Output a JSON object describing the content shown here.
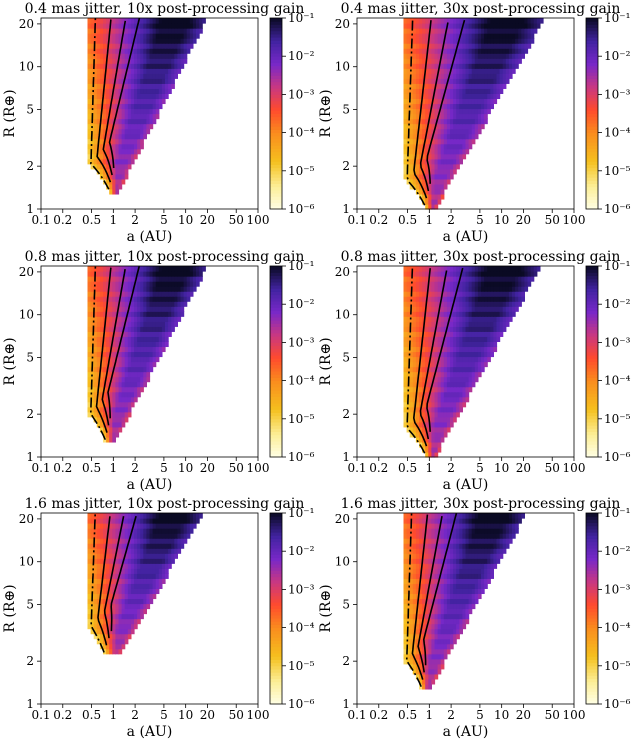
{
  "chart_data": [
    {
      "type": "heatmap",
      "title": "0.4 mas jitter, 10x post-processing gain",
      "xlabel": "a (AU)",
      "ylabel": "R (R⊕)",
      "x_scale": "log",
      "y_scale": "log",
      "xlim": [
        0.1,
        100
      ],
      "ylim": [
        1,
        22
      ],
      "x_ticks": [
        "0.1",
        "0.2",
        "0.5",
        "1",
        "2",
        "5",
        "10",
        "20",
        "50",
        "100"
      ],
      "y_ticks": [
        "1",
        "2",
        "5",
        "10",
        "20"
      ],
      "colorbar": {
        "scale": "log",
        "range": [
          1e-06,
          0.1
        ],
        "ticks": [
          "10⁻⁶",
          "10⁻⁵",
          "10⁻⁴",
          "10⁻³",
          "10⁻²",
          "10⁻¹"
        ]
      },
      "region": {
        "inner_edge_a": 0.45,
        "min_R": 1.3,
        "min_R_at_a": 0.9,
        "outer_edge": [
          [
            0.9,
            1
          ],
          [
            20,
            22
          ]
        ]
      },
      "contours": 4
    },
    {
      "type": "heatmap",
      "title": "0.4 mas jitter, 30x post-processing gain",
      "xlabel": "a (AU)",
      "ylabel": "R (R⊕)",
      "x_scale": "log",
      "y_scale": "log",
      "xlim": [
        0.1,
        100
      ],
      "ylim": [
        1,
        22
      ],
      "x_ticks": [
        "0.1",
        "0.2",
        "0.5",
        "1",
        "2",
        "5",
        "10",
        "20",
        "50",
        "100"
      ],
      "y_ticks": [
        "1",
        "2",
        "5",
        "10",
        "20"
      ],
      "colorbar": {
        "scale": "log",
        "range": [
          1e-06,
          0.1
        ],
        "ticks": [
          "10⁻⁶",
          "10⁻⁵",
          "10⁻⁴",
          "10⁻³",
          "10⁻²",
          "10⁻¹"
        ]
      },
      "region": {
        "inner_edge_a": 0.45,
        "min_R": 1.0,
        "min_R_at_a": 0.9,
        "outer_edge": [
          [
            1.2,
            1
          ],
          [
            40,
            22
          ]
        ]
      },
      "contours": 4
    },
    {
      "type": "heatmap",
      "title": "0.8 mas jitter, 10x post-processing gain",
      "xlabel": "a (AU)",
      "ylabel": "R (R⊕)",
      "x_scale": "log",
      "y_scale": "log",
      "xlim": [
        0.1,
        100
      ],
      "ylim": [
        1,
        22
      ],
      "x_ticks": [
        "0.1",
        "0.2",
        "0.5",
        "1",
        "2",
        "5",
        "10",
        "20",
        "50",
        "100"
      ],
      "y_ticks": [
        "1",
        "2",
        "5",
        "10",
        "20"
      ],
      "colorbar": {
        "scale": "log",
        "range": [
          1e-06,
          0.1
        ],
        "ticks": [
          "10⁻⁶",
          "10⁻⁵",
          "10⁻⁴",
          "10⁻³",
          "10⁻²",
          "10⁻¹"
        ]
      },
      "region": {
        "inner_edge_a": 0.45,
        "min_R": 1.25,
        "min_R_at_a": 0.8,
        "outer_edge": [
          [
            1.0,
            1.2
          ],
          [
            20,
            22
          ]
        ]
      },
      "contours": 4
    },
    {
      "type": "heatmap",
      "title": "0.8 mas jitter, 30x post-processing gain",
      "xlabel": "a (AU)",
      "ylabel": "R (R⊕)",
      "x_scale": "log",
      "y_scale": "log",
      "xlim": [
        0.1,
        100
      ],
      "ylim": [
        1,
        22
      ],
      "x_ticks": [
        "0.1",
        "0.2",
        "0.5",
        "1",
        "2",
        "5",
        "10",
        "20",
        "50",
        "100"
      ],
      "y_ticks": [
        "1",
        "2",
        "5",
        "10",
        "20"
      ],
      "colorbar": {
        "scale": "log",
        "range": [
          1e-06,
          0.1
        ],
        "ticks": [
          "10⁻⁶",
          "10⁻⁵",
          "10⁻⁴",
          "10⁻³",
          "10⁻²",
          "10⁻¹"
        ]
      },
      "region": {
        "inner_edge_a": 0.45,
        "min_R": 1.0,
        "min_R_at_a": 0.9,
        "outer_edge": [
          [
            1.2,
            1
          ],
          [
            35,
            22
          ]
        ]
      },
      "contours": 4
    },
    {
      "type": "heatmap",
      "title": "1.6 mas jitter, 10x post-processing gain",
      "xlabel": "a (AU)",
      "ylabel": "R (R⊕)",
      "x_scale": "log",
      "y_scale": "log",
      "xlim": [
        0.1,
        100
      ],
      "ylim": [
        1,
        22
      ],
      "x_ticks": [
        "0.1",
        "0.2",
        "0.5",
        "1",
        "2",
        "5",
        "10",
        "20",
        "50",
        "100"
      ],
      "y_ticks": [
        "1",
        "2",
        "5",
        "10",
        "20"
      ],
      "colorbar": {
        "scale": "log",
        "range": [
          1e-06,
          0.1
        ],
        "ticks": [
          "10⁻⁶",
          "10⁻⁵",
          "10⁻⁴",
          "10⁻³",
          "10⁻²",
          "10⁻¹"
        ]
      },
      "region": {
        "inner_edge_a": 0.45,
        "min_R": 2.2,
        "min_R_at_a": 0.75,
        "outer_edge": [
          [
            1.2,
            2.2
          ],
          [
            18,
            22
          ]
        ]
      },
      "contours": 4
    },
    {
      "type": "heatmap",
      "title": "1.6 mas jitter, 30x post-processing gain",
      "xlabel": "a (AU)",
      "ylabel": "R (R⊕)",
      "x_scale": "log",
      "y_scale": "log",
      "xlim": [
        0.1,
        100
      ],
      "ylim": [
        1,
        22
      ],
      "x_ticks": [
        "0.1",
        "0.2",
        "0.5",
        "1",
        "2",
        "5",
        "10",
        "20",
        "50",
        "100"
      ],
      "y_ticks": [
        "1",
        "2",
        "5",
        "10",
        "20"
      ],
      "colorbar": {
        "scale": "log",
        "range": [
          1e-06,
          0.1
        ],
        "ticks": [
          "10⁻⁶",
          "10⁻⁵",
          "10⁻⁴",
          "10⁻³",
          "10⁻²",
          "10⁻¹"
        ]
      },
      "region": {
        "inner_edge_a": 0.45,
        "min_R": 1.25,
        "min_R_at_a": 0.8,
        "outer_edge": [
          [
            1.0,
            1.25
          ],
          [
            22,
            22
          ]
        ]
      },
      "contours": 4
    }
  ]
}
